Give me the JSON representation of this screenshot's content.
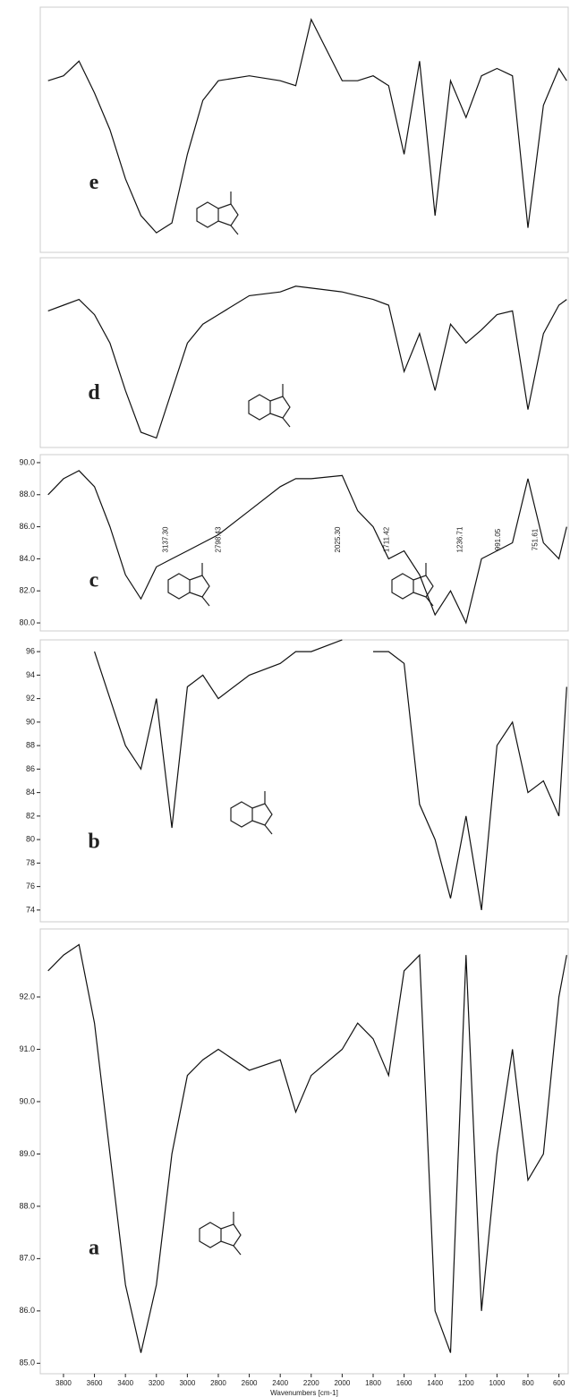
{
  "chart_data": [
    {
      "type": "line",
      "panel_label": "e",
      "x": [
        3900,
        3800,
        3700,
        3600,
        3500,
        3400,
        3300,
        3200,
        3100,
        3000,
        2900,
        2800,
        2600,
        2400,
        2300,
        2200,
        2000,
        1900,
        1800,
        1700,
        1600,
        1500,
        1400,
        1300,
        1200,
        1100,
        1000,
        900,
        800,
        700,
        600,
        550
      ],
      "series": [
        {
          "color": "#111111",
          "values": [
            70,
            72,
            78,
            65,
            50,
            30,
            15,
            8,
            12,
            40,
            62,
            70,
            72,
            70,
            68,
            95,
            70,
            70,
            72,
            68,
            40,
            78,
            15,
            70,
            55,
            72,
            75,
            72,
            10,
            60,
            75,
            70
          ]
        }
      ],
      "xlim": [
        3950,
        540
      ],
      "ylim": [
        0,
        100
      ]
    },
    {
      "type": "line",
      "panel_label": "d",
      "x": [
        3900,
        3800,
        3700,
        3600,
        3500,
        3400,
        3300,
        3200,
        3100,
        3000,
        2900,
        2800,
        2600,
        2400,
        2300,
        2200,
        2000,
        1900,
        1800,
        1700,
        1600,
        1500,
        1400,
        1300,
        1200,
        1100,
        1000,
        900,
        800,
        700,
        600,
        550
      ],
      "series": [
        {
          "color": "#111111",
          "values": [
            72,
            75,
            78,
            70,
            55,
            30,
            8,
            5,
            30,
            55,
            65,
            70,
            80,
            82,
            85,
            84,
            82,
            80,
            78,
            75,
            40,
            60,
            30,
            65,
            55,
            62,
            70,
            72,
            20,
            60,
            75,
            78
          ]
        }
      ],
      "xlim": [
        3950,
        540
      ],
      "ylim": [
        0,
        100
      ]
    },
    {
      "type": "line",
      "panel_label": "c",
      "x": [
        3900,
        3800,
        3700,
        3600,
        3500,
        3400,
        3300,
        3200,
        3100,
        3000,
        2900,
        2800,
        2600,
        2400,
        2300,
        2200,
        2000,
        1900,
        1800,
        1700,
        1600,
        1500,
        1400,
        1300,
        1200,
        1100,
        1000,
        900,
        800,
        700,
        600,
        550
      ],
      "series": [
        {
          "color": "#111111",
          "values": [
            88,
            89,
            89.5,
            88.5,
            86,
            83,
            81.5,
            83.5,
            84,
            84.5,
            85,
            85.5,
            87,
            88.5,
            89,
            89,
            89.2,
            87,
            86,
            84,
            84.5,
            83,
            80.5,
            82,
            80,
            84,
            84.5,
            85,
            89,
            85,
            84,
            86
          ]
        }
      ],
      "xlim": [
        3950,
        540
      ],
      "ylim": [
        79.5,
        90.5
      ],
      "yticks": [
        {
          "value": 80,
          "label": "80.0"
        },
        {
          "value": 82,
          "label": "82.0"
        },
        {
          "value": 84,
          "label": "84.0"
        },
        {
          "value": 86,
          "label": "86.0"
        },
        {
          "value": 88,
          "label": "88.0"
        },
        {
          "value": 90,
          "label": "90.0"
        }
      ],
      "annotations": [
        {
          "value": 3137.3,
          "label": "3137.30"
        },
        {
          "value": 2798.43,
          "label": "2798.43"
        },
        {
          "value": 2025.3,
          "label": "2025.30"
        },
        {
          "value": 1711.42,
          "label": "1711.42"
        },
        {
          "value": 1236.71,
          "label": "1236.71"
        },
        {
          "value": 991.05,
          "label": "991.05"
        },
        {
          "value": 751.61,
          "label": "751.61"
        }
      ]
    },
    {
      "type": "line",
      "panel_label": "b",
      "x": [
        3900,
        3800,
        3700,
        3600,
        3500,
        3400,
        3300,
        3200,
        3100,
        3000,
        2900,
        2800,
        2600,
        2400,
        2300,
        2200,
        2000,
        1900,
        1800,
        1700,
        1600,
        1500,
        1400,
        1300,
        1200,
        1100,
        1000,
        900,
        800,
        700,
        600,
        550
      ],
      "series": [
        {
          "color": "#111111",
          "values": [
            null,
            null,
            null,
            96,
            92,
            88,
            86,
            92,
            81,
            93,
            94,
            92,
            94,
            95,
            96,
            96,
            97,
            null,
            96,
            96,
            95,
            83,
            80,
            75,
            82,
            74,
            88,
            90,
            84,
            85,
            82,
            93
          ]
        }
      ],
      "xlim": [
        3950,
        540
      ],
      "ylim": [
        73,
        97
      ],
      "yticks": [
        74,
        76,
        78,
        80,
        82,
        84,
        86,
        88,
        90,
        92,
        94,
        96
      ]
    },
    {
      "type": "line",
      "panel_label": "a",
      "x": [
        3900,
        3800,
        3700,
        3600,
        3500,
        3400,
        3300,
        3200,
        3100,
        3000,
        2900,
        2800,
        2600,
        2400,
        2300,
        2200,
        2000,
        1900,
        1800,
        1700,
        1600,
        1500,
        1400,
        1300,
        1200,
        1100,
        1000,
        900,
        800,
        700,
        600,
        550
      ],
      "series": [
        {
          "color": "#111111",
          "values": [
            92.5,
            92.8,
            93,
            91.5,
            89,
            86.5,
            85.2,
            86.5,
            89,
            90.5,
            90.8,
            91,
            90.6,
            90.8,
            89.8,
            90.5,
            91,
            91.5,
            91.2,
            90.5,
            92.5,
            92.8,
            86,
            85.2,
            92.8,
            86,
            89,
            91,
            88.5,
            89,
            92,
            92.8
          ]
        }
      ],
      "xlim": [
        3950,
        540
      ],
      "ylim": [
        84.8,
        93.3
      ],
      "yticks": [
        {
          "value": 85,
          "label": "85.0"
        },
        {
          "value": 86,
          "label": "86.0"
        },
        {
          "value": 87,
          "label": "87.0"
        },
        {
          "value": 88,
          "label": "88.0"
        },
        {
          "value": 89,
          "label": "89.0"
        },
        {
          "value": 90,
          "label": "90.0"
        },
        {
          "value": 91,
          "label": "91.0"
        },
        {
          "value": 92,
          "label": "92.0"
        }
      ],
      "xticks": [
        3800,
        3600,
        3400,
        3200,
        3000,
        2800,
        2600,
        2400,
        2200,
        2000,
        1800,
        1600,
        1400,
        1200,
        1000,
        800,
        600
      ],
      "x_label": "Wavenumbers [cm-1]"
    }
  ]
}
